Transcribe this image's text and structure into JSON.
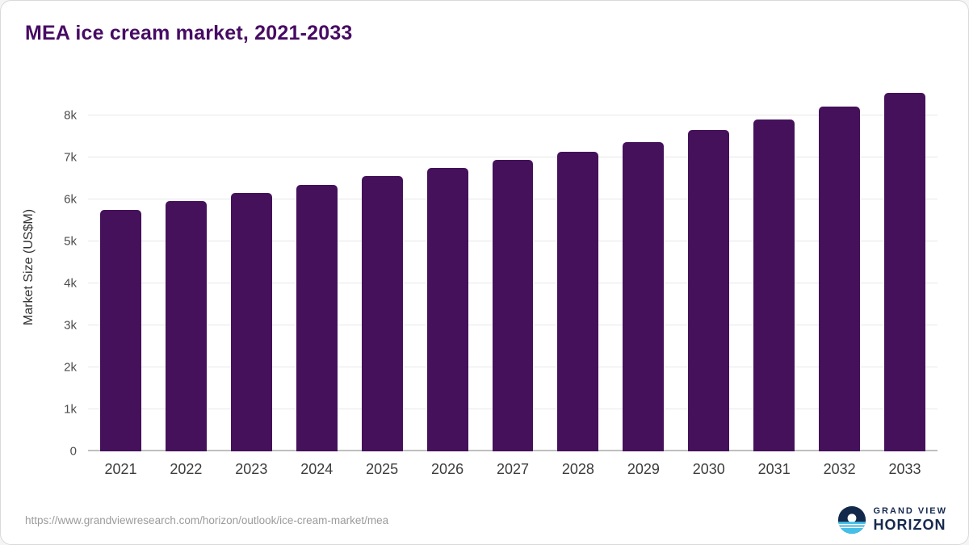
{
  "title": "MEA ice cream market, 2021-2033",
  "footer": {
    "source_url": "https://www.grandviewresearch.com/horizon/outlook/ice-cream-market/mea",
    "brand_line1": "GRAND VIEW",
    "brand_line2": "HORIZON"
  },
  "colors": {
    "bar": "#45115a",
    "title": "#470b63",
    "brand_navy": "#16294e",
    "brand_blue": "#43bfe8"
  },
  "chart_data": {
    "type": "bar",
    "title": "MEA ice cream market, 2021-2033",
    "categories": [
      "2021",
      "2022",
      "2023",
      "2024",
      "2025",
      "2026",
      "2027",
      "2028",
      "2029",
      "2030",
      "2031",
      "2032",
      "2033"
    ],
    "values": [
      5750,
      5950,
      6150,
      6350,
      6550,
      6750,
      6930,
      7130,
      7360,
      7650,
      7900,
      8200,
      8530
    ],
    "xlabel": "",
    "ylabel": "Market Size (US$M)",
    "ylim": [
      0,
      8800
    ],
    "yticks": [
      0,
      1000,
      2000,
      3000,
      4000,
      5000,
      6000,
      7000,
      8000
    ],
    "ytick_labels": [
      "0",
      "1k",
      "2k",
      "3k",
      "4k",
      "5k",
      "6k",
      "7k",
      "8k"
    ],
    "grid": true,
    "legend": false
  }
}
